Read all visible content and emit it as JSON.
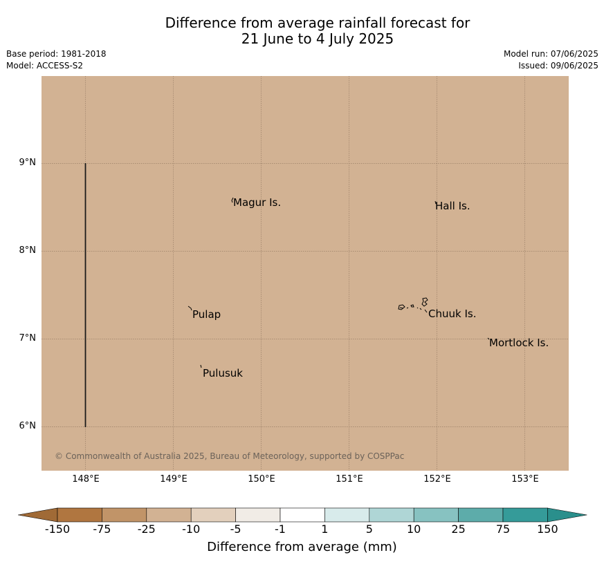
{
  "title_line1": "Difference from average rainfall forecast for",
  "title_line2": "21 June to 4 July 2025",
  "base_period": "Base period: 1981-2018",
  "model": "Model: ACCESS-S2",
  "model_run": "Model run: 07/06/2025",
  "issued": "Issued: 09/06/2025",
  "map": {
    "fill_color": "#d2b293",
    "lat_labels": [
      "9°N",
      "8°N",
      "7°N",
      "6°N"
    ],
    "lon_labels": [
      "148°E",
      "149°E",
      "150°E",
      "151°E",
      "152°E",
      "153°E"
    ],
    "islands": {
      "magur": "Magur Is.",
      "hall": "Hall Is.",
      "pulap": "Pulap",
      "chuuk": "Chuuk Is.",
      "mortlock": "Mortlock Is.",
      "pulusuk": "Pulusuk"
    },
    "copyright": "© Commonwealth of Australia 2025, Bureau of Meteorology, supported by COSPPac"
  },
  "colorbar": {
    "colors": [
      "#b07640",
      "#c19468",
      "#d2b293",
      "#e3d0bd",
      "#f1ece6",
      "#ffffff",
      "#d8ebeb",
      "#afd6d6",
      "#87c2c1",
      "#5dacaa",
      "#359b99"
    ],
    "low_extend_color": "#a06a36",
    "high_extend_color": "#2a8f8c",
    "ticks": [
      "-150",
      "-75",
      "-25",
      "-10",
      "-5",
      "-1",
      "1",
      "5",
      "10",
      "25",
      "75",
      "150"
    ],
    "label": "Difference from average (mm)"
  }
}
